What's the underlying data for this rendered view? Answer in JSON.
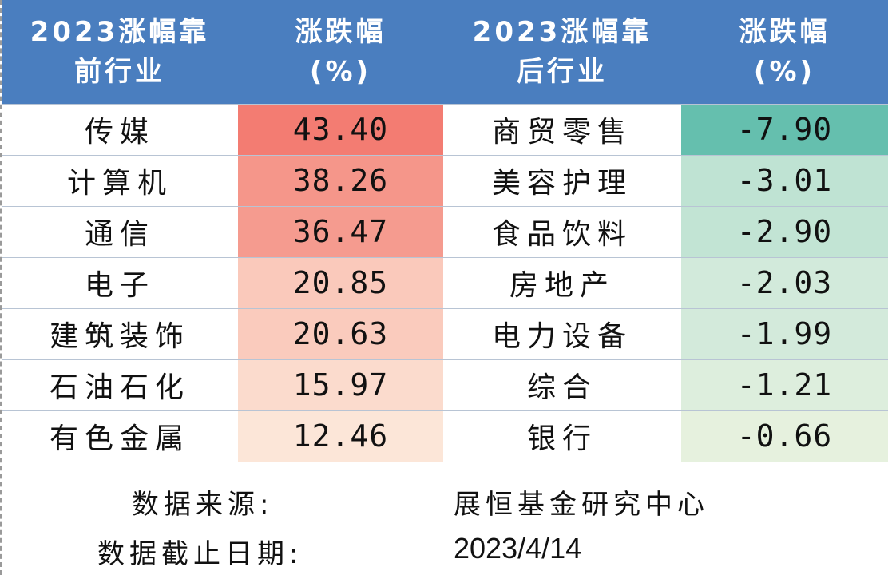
{
  "headers": [
    "2023涨幅靠\n前行业",
    "涨跌幅\n(%)",
    "2023涨幅靠\n后行业",
    "涨跌幅\n(%)"
  ],
  "rows": [
    {
      "top_industry": "传媒",
      "top_change": "43.40",
      "top_color": "#f37c72",
      "bottom_industry": "商贸零售",
      "bottom_change": "-7.90",
      "bottom_color": "#65bfae"
    },
    {
      "top_industry": "计算机",
      "top_change": "38.26",
      "top_color": "#f5968a",
      "bottom_industry": "美容护理",
      "bottom_change": "-3.01",
      "bottom_color": "#bfe3d3"
    },
    {
      "top_industry": "通信",
      "top_change": "36.47",
      "top_color": "#f59b8f",
      "bottom_industry": "食品饮料",
      "bottom_change": "-2.90",
      "bottom_color": "#c2e4d4"
    },
    {
      "top_industry": "电子",
      "top_change": "20.85",
      "top_color": "#fac9bb",
      "bottom_industry": "房地产",
      "bottom_change": "-2.03",
      "bottom_color": "#d2eadb"
    },
    {
      "top_industry": "建筑装饰",
      "top_change": "20.63",
      "top_color": "#facbbd",
      "bottom_industry": "电力设备",
      "bottom_change": "-1.99",
      "bottom_color": "#d3eadb"
    },
    {
      "top_industry": "石油石化",
      "top_change": "15.97",
      "top_color": "#fbdbcd",
      "bottom_industry": "综合",
      "bottom_change": "-1.21",
      "bottom_color": "#ddeedd"
    },
    {
      "top_industry": "有色金属",
      "top_change": "12.46",
      "top_color": "#fce6d8",
      "bottom_industry": "银行",
      "bottom_change": "-0.66",
      "bottom_color": "#e6f1de"
    }
  ],
  "footer": {
    "source_label": "数据来源:",
    "source_value": "展恒基金研究中心",
    "date_label": "数据截止日期:",
    "date_value": "2023/4/14"
  }
}
